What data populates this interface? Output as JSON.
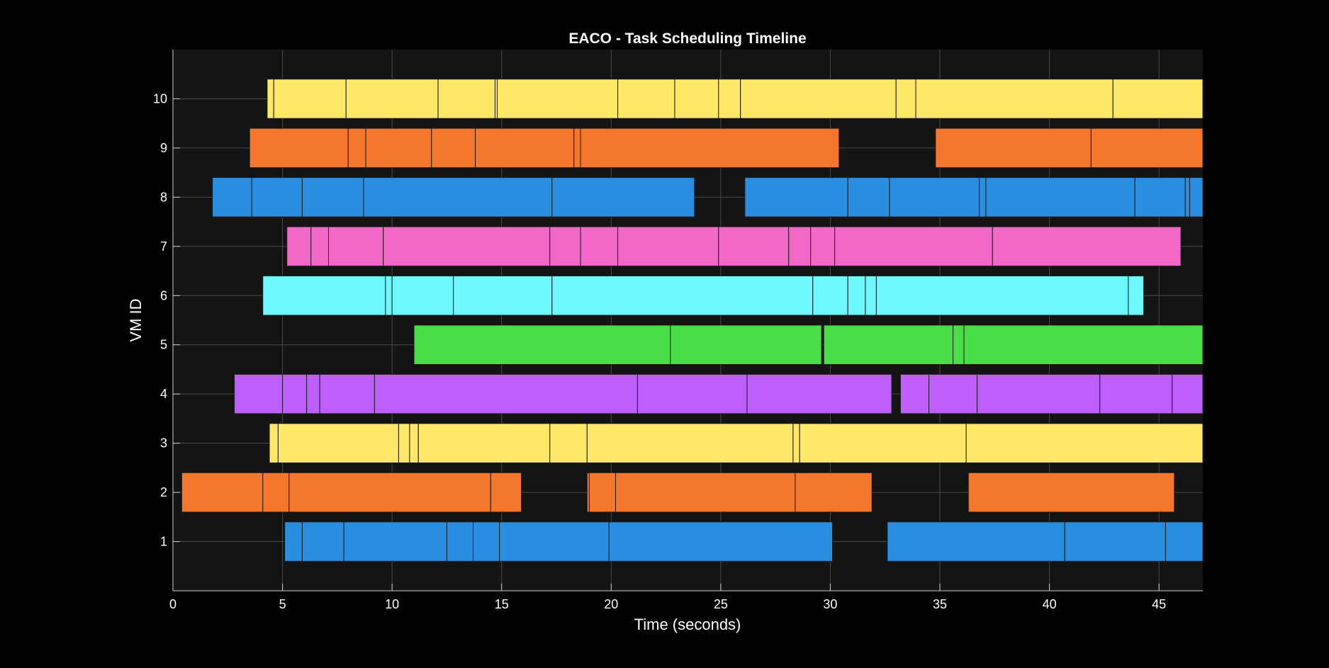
{
  "chart_data": {
    "type": "bar",
    "subtype": "gantt-timeline",
    "title": "EACO - Task Scheduling Timeline",
    "xlabel": "Time (seconds)",
    "ylabel": "VM ID",
    "xlim": [
      0,
      47
    ],
    "ylim": [
      0,
      11
    ],
    "xticks": [
      0,
      5,
      10,
      15,
      20,
      25,
      30,
      35,
      40,
      45
    ],
    "yticks": [
      1,
      2,
      3,
      4,
      5,
      6,
      7,
      8,
      9,
      10
    ],
    "grid": true,
    "legend": "none",
    "colors": {
      "background": "#000000",
      "plot_background": "#141414",
      "grid": "#4a4a4a",
      "axis": "#cfcfcf",
      "text": "#ffffff",
      "bar_edge": "#1a1a1a"
    },
    "vms": [
      {
        "vm": 1,
        "color": "#2a8ee0",
        "tasks": [
          [
            5.1,
            5.9
          ],
          [
            5.9,
            7.8
          ],
          [
            7.8,
            12.5
          ],
          [
            12.5,
            13.7
          ],
          [
            13.7,
            14.9
          ],
          [
            14.9,
            19.9
          ],
          [
            19.9,
            30.1
          ],
          [
            32.6,
            40.7
          ],
          [
            40.7,
            45.3
          ],
          [
            45.3,
            47
          ]
        ]
      },
      {
        "vm": 2,
        "color": "#f4772c",
        "tasks": [
          [
            0.4,
            4.1
          ],
          [
            4.1,
            5.3
          ],
          [
            5.3,
            14.5
          ],
          [
            14.5,
            15.9
          ],
          [
            18.9,
            19.0
          ],
          [
            19.0,
            20.2
          ],
          [
            20.2,
            28.4
          ],
          [
            28.4,
            31.9
          ],
          [
            36.3,
            45.7
          ]
        ]
      },
      {
        "vm": 3,
        "color": "#ffe866",
        "tasks": [
          [
            4.4,
            4.8
          ],
          [
            4.8,
            10.3
          ],
          [
            10.3,
            10.8
          ],
          [
            10.8,
            11.2
          ],
          [
            11.2,
            17.2
          ],
          [
            17.2,
            18.9
          ],
          [
            18.9,
            28.3
          ],
          [
            28.3,
            28.6
          ],
          [
            28.6,
            36.2
          ],
          [
            36.2,
            47
          ]
        ]
      },
      {
        "vm": 4,
        "color": "#bf5efe",
        "tasks": [
          [
            2.8,
            5.0
          ],
          [
            5.0,
            6.1
          ],
          [
            6.1,
            6.7
          ],
          [
            6.7,
            9.2
          ],
          [
            9.2,
            21.2
          ],
          [
            21.2,
            26.2
          ],
          [
            26.2,
            32.8
          ],
          [
            33.2,
            34.5
          ],
          [
            34.5,
            36.7
          ],
          [
            36.7,
            42.3
          ],
          [
            42.3,
            45.6
          ],
          [
            45.6,
            47
          ]
        ]
      },
      {
        "vm": 5,
        "color": "#4ade46",
        "tasks": [
          [
            11.0,
            22.7
          ],
          [
            22.7,
            29.6
          ],
          [
            29.7,
            35.6
          ],
          [
            35.6,
            36.1
          ],
          [
            36.1,
            47
          ]
        ]
      },
      {
        "vm": 6,
        "color": "#6df8ff",
        "tasks": [
          [
            4.1,
            9.7
          ],
          [
            9.7,
            10.0
          ],
          [
            10.0,
            12.8
          ],
          [
            12.8,
            17.3
          ],
          [
            17.3,
            29.2
          ],
          [
            29.2,
            30.8
          ],
          [
            30.8,
            31.6
          ],
          [
            31.6,
            32.1
          ],
          [
            32.1,
            43.6
          ],
          [
            43.6,
            44.3
          ]
        ]
      },
      {
        "vm": 7,
        "color": "#f268c8",
        "tasks": [
          [
            5.2,
            6.3
          ],
          [
            6.3,
            7.1
          ],
          [
            7.1,
            9.6
          ],
          [
            9.6,
            17.2
          ],
          [
            17.2,
            18.6
          ],
          [
            18.6,
            20.3
          ],
          [
            20.3,
            24.9
          ],
          [
            24.9,
            28.1
          ],
          [
            28.1,
            29.1
          ],
          [
            29.1,
            30.2
          ],
          [
            30.2,
            37.4
          ],
          [
            37.4,
            46.0
          ]
        ]
      },
      {
        "vm": 8,
        "color": "#2a8ee0",
        "tasks": [
          [
            1.8,
            3.6
          ],
          [
            3.6,
            5.9
          ],
          [
            5.9,
            8.7
          ],
          [
            8.7,
            17.3
          ],
          [
            17.3,
            23.8
          ],
          [
            26.1,
            30.8
          ],
          [
            30.8,
            32.7
          ],
          [
            32.7,
            36.8
          ],
          [
            36.8,
            37.1
          ],
          [
            37.1,
            43.9
          ],
          [
            43.9,
            46.2
          ],
          [
            46.2,
            46.4
          ],
          [
            46.4,
            47
          ]
        ]
      },
      {
        "vm": 9,
        "color": "#f4772c",
        "tasks": [
          [
            3.5,
            8.0
          ],
          [
            8.0,
            8.8
          ],
          [
            8.8,
            11.8
          ],
          [
            11.8,
            13.8
          ],
          [
            13.8,
            18.3
          ],
          [
            18.3,
            18.6
          ],
          [
            18.6,
            30.4
          ],
          [
            34.8,
            41.9
          ],
          [
            41.9,
            47
          ]
        ]
      },
      {
        "vm": 10,
        "color": "#ffe866",
        "tasks": [
          [
            4.3,
            4.6
          ],
          [
            4.6,
            7.9
          ],
          [
            7.9,
            12.1
          ],
          [
            12.1,
            14.7
          ],
          [
            14.7,
            14.8
          ],
          [
            14.8,
            20.3
          ],
          [
            20.3,
            22.9
          ],
          [
            22.9,
            24.9
          ],
          [
            24.9,
            25.9
          ],
          [
            25.9,
            33.0
          ],
          [
            33.0,
            33.9
          ],
          [
            33.9,
            42.9
          ],
          [
            42.9,
            47
          ]
        ]
      }
    ]
  }
}
